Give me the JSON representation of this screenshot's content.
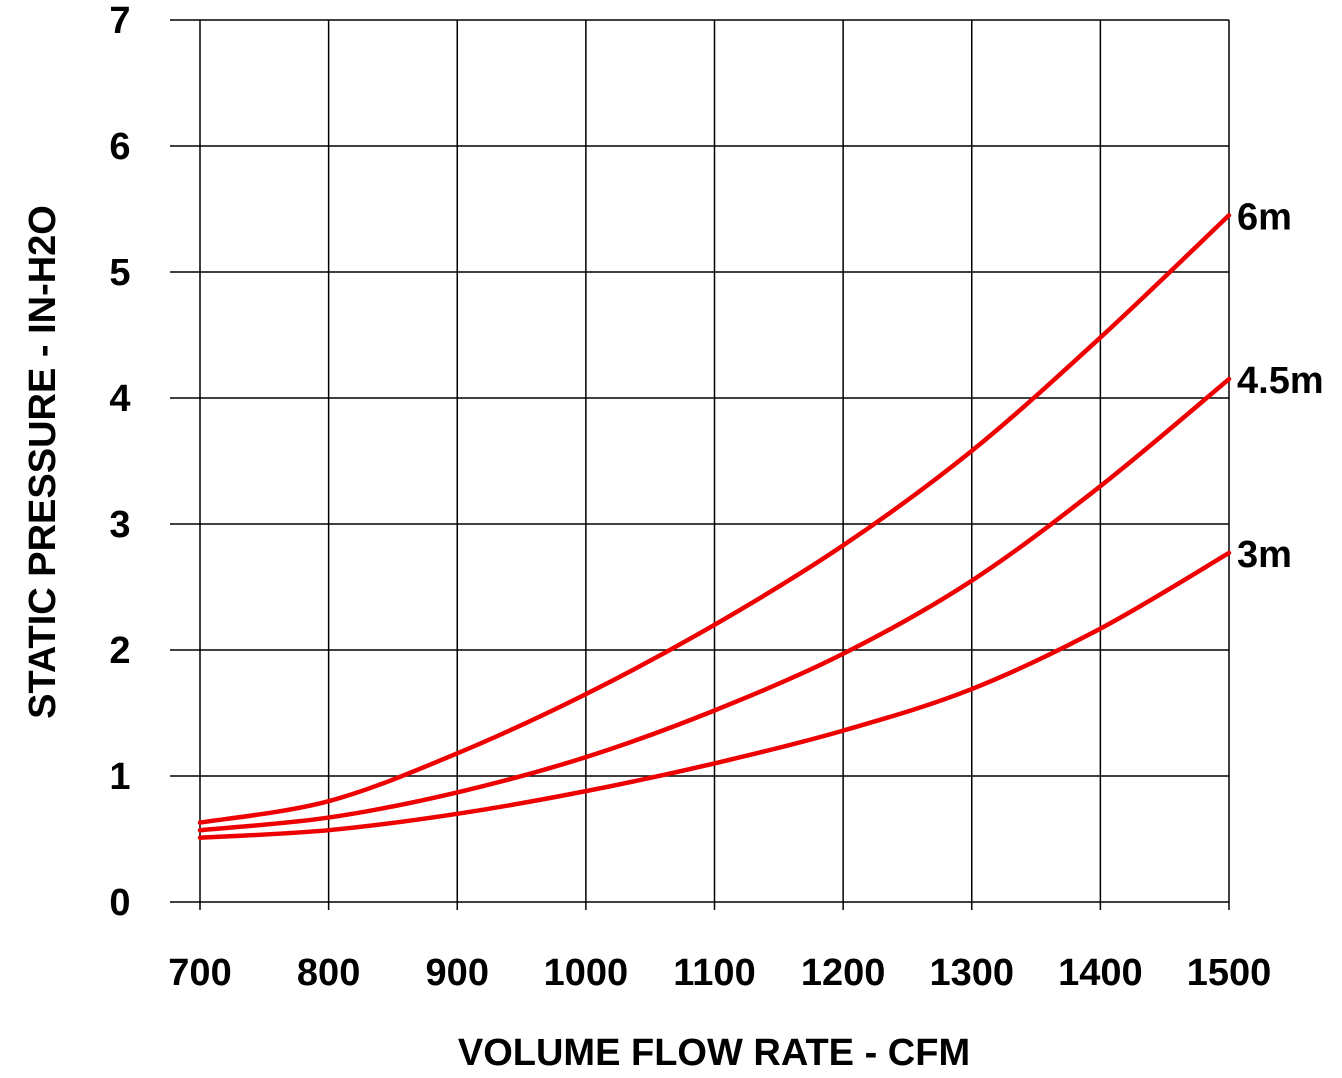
{
  "chart_data": {
    "type": "line",
    "title": "",
    "xlabel": "VOLUME FLOW RATE - CFM",
    "ylabel": "STATIC PRESSURE - IN-H2O",
    "xlim": [
      700,
      1500
    ],
    "ylim": [
      0,
      7
    ],
    "x_ticks": [
      "700",
      "800",
      "900",
      "1000",
      "1100",
      "1200",
      "1300",
      "1400",
      "1500"
    ],
    "y_ticks": [
      "0",
      "1",
      "2",
      "3",
      "4",
      "5",
      "6",
      "7"
    ],
    "grid": true,
    "legend": "none",
    "series_color": "#ee0000",
    "x": [
      700,
      800,
      900,
      1000,
      1100,
      1200,
      1300,
      1400,
      1500
    ],
    "series": [
      {
        "name": "6m",
        "values": [
          0.63,
          0.8,
          1.18,
          1.65,
          2.2,
          2.83,
          3.58,
          4.48,
          5.45
        ]
      },
      {
        "name": "4.5m",
        "values": [
          0.57,
          0.67,
          0.87,
          1.15,
          1.52,
          1.97,
          2.55,
          3.3,
          4.15
        ]
      },
      {
        "name": "3m",
        "values": [
          0.51,
          0.57,
          0.7,
          0.88,
          1.1,
          1.36,
          1.69,
          2.17,
          2.77
        ]
      }
    ]
  }
}
